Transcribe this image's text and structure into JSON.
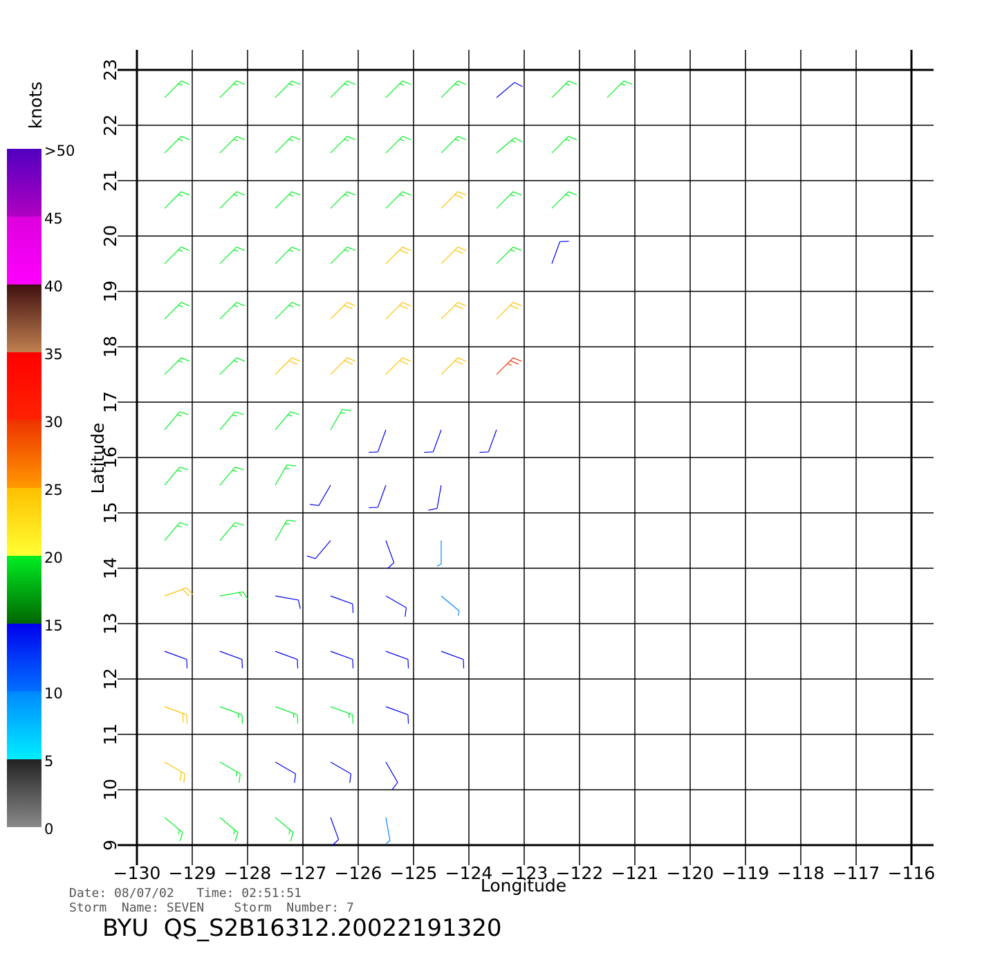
{
  "chart_data": {
    "type": "wind-barbs",
    "xlabel": "Longitude",
    "ylabel": "Latitude",
    "xlim": [
      -130,
      -116
    ],
    "xticks": [
      {
        "value": -130,
        "label": "−130"
      },
      {
        "value": -129,
        "label": "−129"
      },
      {
        "value": -128,
        "label": "−128"
      },
      {
        "value": -127,
        "label": "−127"
      },
      {
        "value": -126,
        "label": "−126"
      },
      {
        "value": -125,
        "label": "−125"
      },
      {
        "value": -124,
        "label": "−124"
      },
      {
        "value": -123,
        "label": "−123"
      },
      {
        "value": -122,
        "label": "−122"
      },
      {
        "value": -121,
        "label": "−121"
      },
      {
        "value": -120,
        "label": "−120"
      },
      {
        "value": -119,
        "label": "−119"
      },
      {
        "value": -118,
        "label": "−118"
      },
      {
        "value": -117,
        "label": "−117"
      },
      {
        "value": -116,
        "label": "−116"
      }
    ],
    "ylim": [
      9,
      23
    ],
    "yticks": [
      9,
      10,
      11,
      12,
      13,
      14,
      15,
      16,
      17,
      18,
      19,
      20,
      21,
      22,
      23
    ],
    "grid": true,
    "colorbar": {
      "label": "knots",
      "lim": [
        0,
        50
      ],
      "ticks": [
        0,
        5,
        10,
        15,
        20,
        25,
        30,
        35,
        40,
        45,
        {
          "value": 50,
          "label": ">50"
        }
      ],
      "colors": [
        [
          "#8a8a8a",
          "#222222"
        ],
        [
          "#00eeff",
          "#0088ff"
        ],
        [
          "#0070ff",
          "#0000ee"
        ],
        [
          "#006600",
          "#00ee22"
        ],
        [
          "#ffff33",
          "#ffc000"
        ],
        [
          "#ff9900",
          "#ee3300"
        ],
        [
          "#ff2200",
          "#ff0000"
        ],
        [
          "#c08050",
          "#401010"
        ],
        [
          "#ff00ff",
          "#dd00dd"
        ],
        [
          "#b000c0",
          "#5000c0"
        ]
      ]
    },
    "barbs": [
      [
        -129.5,
        22.5,
        17,
        45
      ],
      [
        -128.5,
        22.5,
        17,
        45
      ],
      [
        -127.5,
        22.5,
        17,
        45
      ],
      [
        -126.5,
        22.5,
        17,
        45
      ],
      [
        -125.5,
        22.5,
        17,
        45
      ],
      [
        -124.5,
        22.5,
        16,
        45
      ],
      [
        -123.5,
        22.5,
        13,
        50
      ],
      [
        -122.5,
        22.5,
        16,
        45
      ],
      [
        -121.5,
        22.5,
        17,
        45
      ],
      [
        -129.5,
        21.5,
        17,
        45
      ],
      [
        -128.5,
        21.5,
        17,
        45
      ],
      [
        -127.5,
        21.5,
        17,
        45
      ],
      [
        -126.5,
        21.5,
        17,
        45
      ],
      [
        -125.5,
        21.5,
        17,
        45
      ],
      [
        -124.5,
        21.5,
        18,
        45
      ],
      [
        -123.5,
        21.5,
        16,
        50
      ],
      [
        -122.5,
        21.5,
        17,
        45
      ],
      [
        -129.5,
        20.5,
        17,
        45
      ],
      [
        -128.5,
        20.5,
        17,
        45
      ],
      [
        -127.5,
        20.5,
        17,
        45
      ],
      [
        -126.5,
        20.5,
        18,
        45
      ],
      [
        -125.5,
        20.5,
        19,
        45
      ],
      [
        -124.5,
        20.5,
        21,
        45
      ],
      [
        -123.5,
        20.5,
        17,
        45
      ],
      [
        -122.5,
        20.5,
        17,
        45
      ],
      [
        -129.5,
        19.5,
        17,
        45
      ],
      [
        -128.5,
        19.5,
        17,
        45
      ],
      [
        -127.5,
        19.5,
        18,
        45
      ],
      [
        -126.5,
        19.5,
        19,
        45
      ],
      [
        -125.5,
        19.5,
        21,
        45
      ],
      [
        -124.5,
        19.5,
        21,
        45
      ],
      [
        -123.5,
        19.5,
        19,
        45
      ],
      [
        -122.5,
        19.5,
        13,
        20
      ],
      [
        -129.5,
        18.5,
        17,
        45
      ],
      [
        -128.5,
        18.5,
        17,
        45
      ],
      [
        -127.5,
        18.5,
        19,
        45
      ],
      [
        -126.5,
        18.5,
        21,
        45
      ],
      [
        -125.5,
        18.5,
        21,
        45
      ],
      [
        -124.5,
        18.5,
        21,
        45
      ],
      [
        -123.5,
        18.5,
        22,
        45
      ],
      [
        -129.5,
        17.5,
        17,
        45
      ],
      [
        -128.5,
        17.5,
        17,
        45
      ],
      [
        -127.5,
        17.5,
        21,
        45
      ],
      [
        -126.5,
        17.5,
        21,
        45
      ],
      [
        -125.5,
        17.5,
        21,
        45
      ],
      [
        -124.5,
        17.5,
        21,
        45
      ],
      [
        -123.5,
        17.5,
        28,
        45
      ],
      [
        -129.5,
        16.5,
        17,
        40
      ],
      [
        -128.5,
        16.5,
        17,
        40
      ],
      [
        -127.5,
        16.5,
        17,
        40
      ],
      [
        -126.5,
        16.5,
        18,
        30
      ],
      [
        -125.5,
        16.5,
        13,
        200
      ],
      [
        -124.5,
        16.5,
        12,
        200
      ],
      [
        -123.5,
        16.5,
        12,
        200
      ],
      [
        -129.5,
        15.5,
        17,
        40
      ],
      [
        -128.5,
        15.5,
        17,
        40
      ],
      [
        -127.5,
        15.5,
        17,
        30
      ],
      [
        -126.5,
        15.5,
        13,
        210
      ],
      [
        -125.5,
        15.5,
        12,
        200
      ],
      [
        -124.5,
        15.5,
        11,
        190
      ],
      [
        -129.5,
        14.5,
        17,
        40
      ],
      [
        -128.5,
        14.5,
        17,
        40
      ],
      [
        -127.5,
        14.5,
        17,
        30
      ],
      [
        -126.5,
        14.5,
        12,
        220
      ],
      [
        -125.5,
        14.5,
        11,
        160
      ],
      [
        -124.5,
        14.5,
        9,
        180
      ],
      [
        -129.5,
        13.5,
        22,
        70
      ],
      [
        -128.5,
        13.5,
        18,
        80
      ],
      [
        -127.5,
        13.5,
        14,
        100
      ],
      [
        -126.5,
        13.5,
        14,
        110
      ],
      [
        -125.5,
        13.5,
        13,
        120
      ],
      [
        -124.5,
        13.5,
        9,
        130
      ],
      [
        -129.5,
        12.5,
        12,
        110
      ],
      [
        -128.5,
        12.5,
        12,
        110
      ],
      [
        -127.5,
        12.5,
        12,
        110
      ],
      [
        -126.5,
        12.5,
        13,
        110
      ],
      [
        -125.5,
        12.5,
        14,
        110
      ],
      [
        -124.5,
        12.5,
        11,
        110
      ],
      [
        -129.5,
        11.5,
        24,
        110
      ],
      [
        -128.5,
        11.5,
        17,
        110
      ],
      [
        -127.5,
        11.5,
        15,
        110
      ],
      [
        -126.5,
        11.5,
        17,
        110
      ],
      [
        -125.5,
        11.5,
        12,
        110
      ],
      [
        -129.5,
        10.5,
        24,
        120
      ],
      [
        -128.5,
        10.5,
        17,
        120
      ],
      [
        -127.5,
        10.5,
        14,
        120
      ],
      [
        -126.5,
        10.5,
        12,
        120
      ],
      [
        -125.5,
        10.5,
        11,
        150
      ],
      [
        -129.5,
        9.5,
        16,
        130
      ],
      [
        -128.5,
        9.5,
        18,
        130
      ],
      [
        -127.5,
        9.5,
        15,
        130
      ],
      [
        -126.5,
        9.5,
        10,
        160
      ],
      [
        -125.5,
        9.5,
        8,
        170
      ]
    ]
  },
  "footer": {
    "date": "Date: 08/07/02   Time: 02:51:51",
    "storm": "Storm  Name: SEVEN    Storm  Number: 7",
    "file": "BYU  QS_S2B16312.20022191320"
  }
}
